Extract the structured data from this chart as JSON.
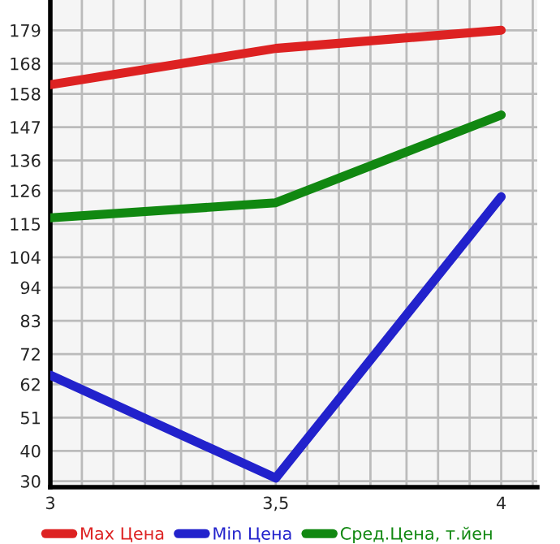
{
  "chart_data": {
    "type": "line",
    "x": [
      3,
      3.5,
      4
    ],
    "series": [
      {
        "name": "Max Цена",
        "color": "#dd2222",
        "values": [
          161,
          173,
          179
        ]
      },
      {
        "name": "Min Цена",
        "color": "#2222cc",
        "values": [
          65,
          31,
          124
        ]
      },
      {
        "name": "Сред.Цена, т.йен",
        "color": "#118811",
        "values": [
          117,
          122,
          151
        ]
      }
    ],
    "xlim": [
      3,
      4.08
    ],
    "xticks": [
      3,
      {
        "value": 3.07,
        "label": null
      },
      {
        "value": 3.14,
        "label": null
      },
      {
        "value": 3.21,
        "label": null
      },
      {
        "value": 3.29,
        "label": null
      },
      {
        "value": 3.36,
        "label": null
      },
      {
        "value": 3.43,
        "label": null
      },
      {
        "value": 3.5,
        "label": "3,5"
      },
      {
        "value": 3.57,
        "label": null
      },
      {
        "value": 3.64,
        "label": null
      },
      {
        "value": 3.71,
        "label": null
      },
      {
        "value": 3.79,
        "label": null
      },
      {
        "value": 3.86,
        "label": null
      },
      {
        "value": 3.93,
        "label": null
      },
      4,
      {
        "value": 4.07,
        "label": null
      }
    ],
    "ylim": [
      28,
      189
    ],
    "yticks": [
      30,
      40,
      51,
      62,
      72,
      83,
      94,
      104,
      115,
      126,
      136,
      147,
      158,
      168,
      179
    ],
    "grid": true,
    "legend": "bottom",
    "marker": "none",
    "line_style": "solid"
  }
}
